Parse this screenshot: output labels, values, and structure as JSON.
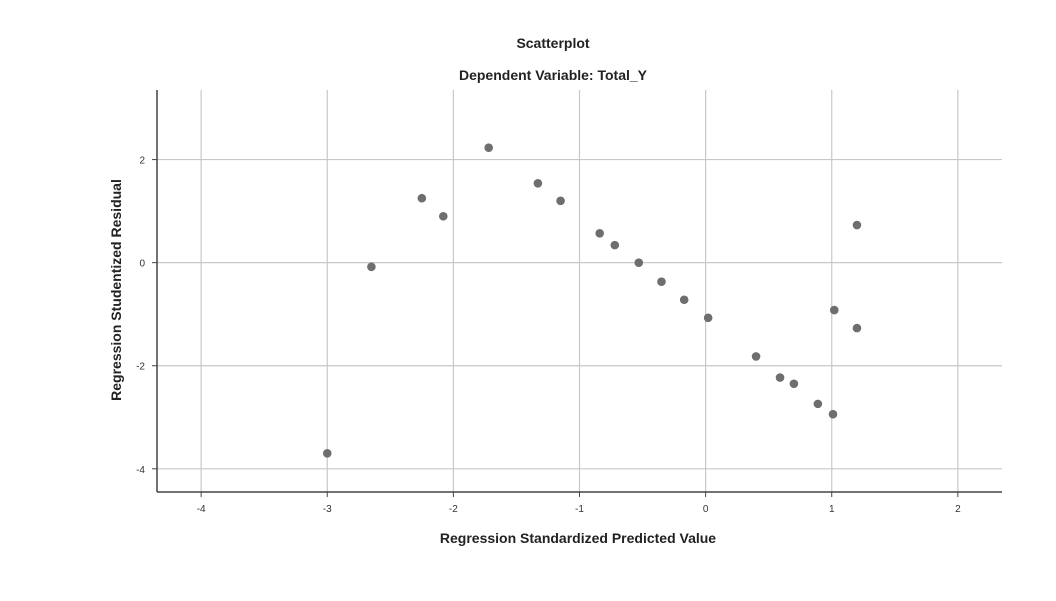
{
  "chart_data": {
    "type": "scatter",
    "title": "Scatterplot",
    "subtitle": "Dependent Variable: Total_Y",
    "xlabel": "Regression Standardized Predicted Value",
    "ylabel": "Regression Studentized Residual",
    "xlim": [
      -4.35,
      2.35
    ],
    "ylim": [
      -4.45,
      3.35
    ],
    "xticks": [
      -4,
      -3,
      -2,
      -1,
      0,
      1,
      2
    ],
    "yticks": [
      2,
      0,
      -2,
      -4
    ],
    "grid": true,
    "point_color": "#6e6e6e",
    "points": [
      {
        "x": -3.0,
        "y": -3.7
      },
      {
        "x": -2.65,
        "y": -0.08
      },
      {
        "x": -2.25,
        "y": 1.25
      },
      {
        "x": -2.08,
        "y": 0.9
      },
      {
        "x": -1.72,
        "y": 2.23
      },
      {
        "x": -1.33,
        "y": 1.54
      },
      {
        "x": -1.15,
        "y": 1.2
      },
      {
        "x": -0.84,
        "y": 0.57
      },
      {
        "x": -0.72,
        "y": 0.34
      },
      {
        "x": -0.53,
        "y": 0.0
      },
      {
        "x": -0.35,
        "y": -0.37
      },
      {
        "x": -0.17,
        "y": -0.72
      },
      {
        "x": 0.02,
        "y": -1.07
      },
      {
        "x": 0.4,
        "y": -1.82
      },
      {
        "x": 0.59,
        "y": -2.23
      },
      {
        "x": 0.7,
        "y": -2.35
      },
      {
        "x": 0.89,
        "y": -2.74
      },
      {
        "x": 1.01,
        "y": -2.94
      },
      {
        "x": 1.02,
        "y": -0.92
      },
      {
        "x": 1.2,
        "y": 0.73
      },
      {
        "x": 1.2,
        "y": -1.27
      }
    ]
  }
}
